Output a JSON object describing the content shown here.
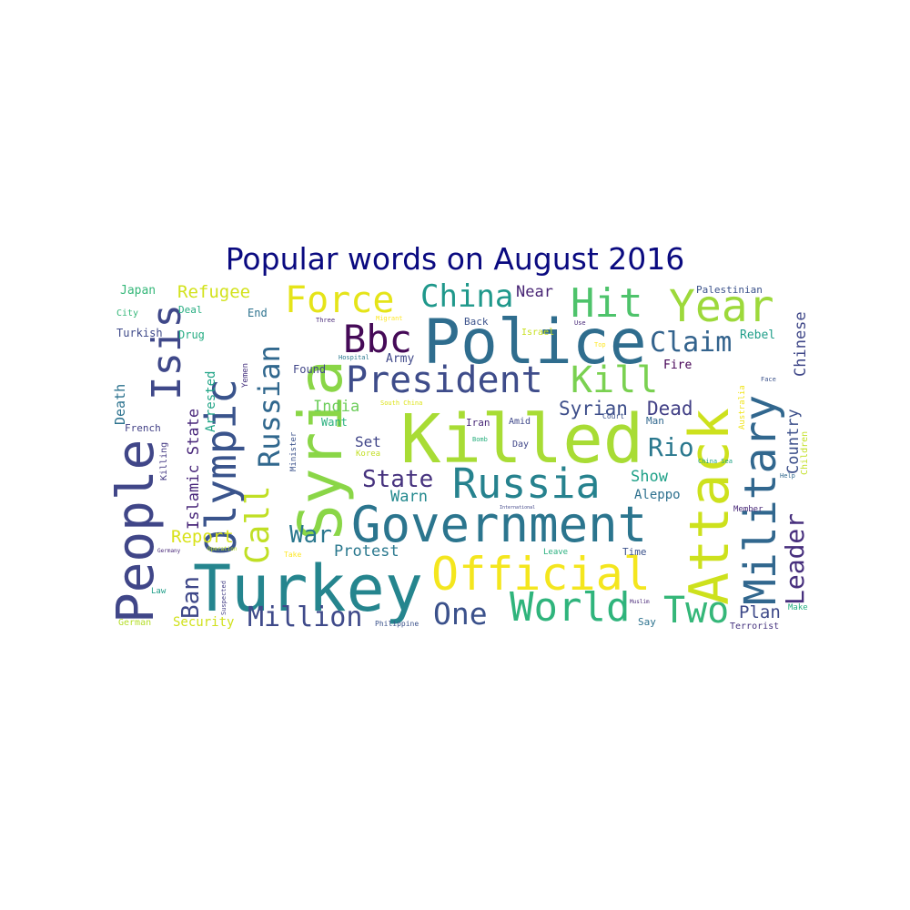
{
  "title": "Popular words on August 2016",
  "colors": {
    "title": "#0a0a80",
    "background": "#ffffff"
  },
  "words": [
    {
      "text": "Killed",
      "color": "#a8dc35"
    },
    {
      "text": "Police",
      "color": "#2f6d8e"
    },
    {
      "text": "Turkey",
      "color": "#25858e"
    },
    {
      "text": "Government",
      "color": "#2b758e"
    },
    {
      "text": "Attack",
      "color": "#cde11d"
    },
    {
      "text": "Syria",
      "color": "#8ad647"
    },
    {
      "text": "People",
      "color": "#404688"
    },
    {
      "text": "Official",
      "color": "#f4e61e"
    },
    {
      "text": "Military",
      "color": "#31678e"
    },
    {
      "text": "Russia",
      "color": "#26828e"
    },
    {
      "text": "Olympic",
      "color": "#3a548c"
    },
    {
      "text": "President",
      "color": "#3e4c8a"
    },
    {
      "text": "Isis",
      "color": "#3f4889"
    },
    {
      "text": "Year",
      "color": "#9dd93b"
    },
    {
      "text": "World",
      "color": "#2fb47c"
    },
    {
      "text": "Hit",
      "color": "#4ec36b"
    },
    {
      "text": "Bbc",
      "color": "#450a57"
    },
    {
      "text": "Force",
      "color": "#e5e419"
    },
    {
      "text": "Kill",
      "color": "#7ad151"
    },
    {
      "text": "China",
      "color": "#1f988b"
    },
    {
      "text": "Two",
      "color": "#35b779"
    },
    {
      "text": "Call",
      "color": "#c0df25"
    },
    {
      "text": "Russian",
      "color": "#31688e"
    },
    {
      "text": "Leader",
      "color": "#472f7d"
    },
    {
      "text": "Million",
      "color": "#3f4a8a"
    },
    {
      "text": "Claim",
      "color": "#33638d"
    },
    {
      "text": "One",
      "color": "#3b518b"
    },
    {
      "text": "Rio",
      "color": "#2a788e"
    },
    {
      "text": "State",
      "color": "#46327e"
    },
    {
      "text": "War",
      "color": "#2a778e"
    },
    {
      "text": "Ban",
      "color": "#3f4889"
    },
    {
      "text": "Refugee",
      "color": "#d2e21b"
    },
    {
      "text": "Report",
      "color": "#d8e219"
    },
    {
      "text": "Syrian",
      "color": "#3d4e8a"
    },
    {
      "text": "Dead",
      "color": "#424086"
    },
    {
      "text": "Country",
      "color": "#3c4f8a"
    },
    {
      "text": "Chinese",
      "color": "#3f4788"
    },
    {
      "text": "Plan",
      "color": "#3e4a89"
    },
    {
      "text": "Warn",
      "color": "#23898e"
    },
    {
      "text": "Protest",
      "color": "#2a788e"
    },
    {
      "text": "India",
      "color": "#6ccd5a"
    },
    {
      "text": "Islamic State",
      "color": "#48267a"
    },
    {
      "text": "Show",
      "color": "#1fa188"
    },
    {
      "text": "Security",
      "color": "#d0e11c"
    },
    {
      "text": "Death",
      "color": "#2c728e"
    },
    {
      "text": "Near",
      "color": "#482575"
    },
    {
      "text": "Set",
      "color": "#404588"
    },
    {
      "text": "Aleppo",
      "color": "#2d708e"
    },
    {
      "text": "Arrested",
      "color": "#20a486"
    },
    {
      "text": "Japan",
      "color": "#35b779"
    },
    {
      "text": "Palestinian",
      "color": "#3b528b"
    },
    {
      "text": "Rebel",
      "color": "#1f9e89"
    },
    {
      "text": "Fire",
      "color": "#440154"
    },
    {
      "text": "Army",
      "color": "#3f4889"
    },
    {
      "text": "Found",
      "color": "#404688"
    },
    {
      "text": "Want",
      "color": "#2ab07f"
    },
    {
      "text": "Drug",
      "color": "#25ac82"
    },
    {
      "text": "Turkish",
      "color": "#3e4989"
    },
    {
      "text": "End",
      "color": "#2c728e"
    },
    {
      "text": "Deal",
      "color": "#27ad81"
    },
    {
      "text": "Man",
      "color": "#31688e"
    },
    {
      "text": "Time",
      "color": "#3b528b"
    },
    {
      "text": "Say",
      "color": "#2c728e"
    },
    {
      "text": "French",
      "color": "#424186"
    },
    {
      "text": "Back",
      "color": "#3b528b"
    },
    {
      "text": "Killing",
      "color": "#443a83"
    },
    {
      "text": "Iran",
      "color": "#482878"
    },
    {
      "text": "Amid",
      "color": "#3f4889"
    },
    {
      "text": "Day",
      "color": "#404688"
    },
    {
      "text": "Israel",
      "color": "#c8e020"
    },
    {
      "text": "German",
      "color": "#b5de2b"
    },
    {
      "text": "Minister",
      "color": "#3b528b"
    },
    {
      "text": "Yemen",
      "color": "#46337f"
    },
    {
      "text": "City",
      "color": "#35b779"
    },
    {
      "text": "Terrorist",
      "color": "#46337f"
    },
    {
      "text": "Make",
      "color": "#26ad81"
    },
    {
      "text": "Court",
      "color": "#3b528b"
    },
    {
      "text": "Australia",
      "color": "#f1e51d"
    },
    {
      "text": "Children",
      "color": "#c2df23"
    },
    {
      "text": "Korea",
      "color": "#c2df23"
    },
    {
      "text": "Philippine",
      "color": "#3b528b"
    },
    {
      "text": "Leave",
      "color": "#2ab07f"
    },
    {
      "text": "Member",
      "color": "#482878"
    },
    {
      "text": "Law",
      "color": "#1f9e89"
    },
    {
      "text": "Suspected",
      "color": "#433e85"
    },
    {
      "text": "Hospital",
      "color": "#2a788e"
    },
    {
      "text": "Face",
      "color": "#3b528b"
    },
    {
      "text": "Help",
      "color": "#31688e"
    },
    {
      "text": "Use",
      "color": "#482878"
    },
    {
      "text": "Bomb",
      "color": "#2ab07f"
    },
    {
      "text": "Three",
      "color": "#482878"
    },
    {
      "text": "Migrant",
      "color": "#fde725"
    },
    {
      "text": "South China",
      "color": "#dde318"
    },
    {
      "text": "China Sea",
      "color": "#20a386"
    },
    {
      "text": "Top",
      "color": "#fde725"
    },
    {
      "text": "Take",
      "color": "#fde725"
    },
    {
      "text": "Germany",
      "color": "#482878"
    },
    {
      "text": "Operation",
      "color": "#bddf26"
    },
    {
      "text": "Muslim",
      "color": "#482878"
    },
    {
      "text": "International",
      "color": "#404688"
    }
  ]
}
